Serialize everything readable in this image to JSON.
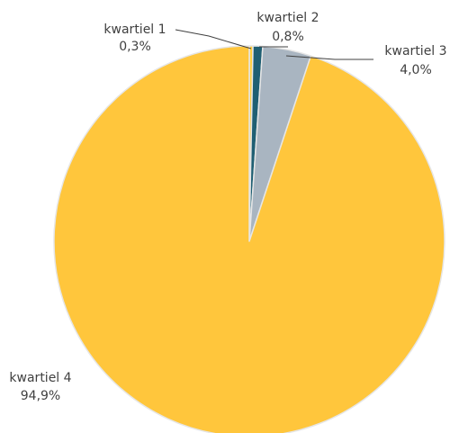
{
  "chart_data": {
    "type": "pie",
    "slices": [
      {
        "label": "kwartiel 1",
        "value": 0.3,
        "value_label": "0,3%",
        "color": "#FFCF3F"
      },
      {
        "label": "kwartiel 2",
        "value": 0.8,
        "value_label": "0,8%",
        "color": "#1F5F73"
      },
      {
        "label": "kwartiel 3",
        "value": 4.0,
        "value_label": "4,0%",
        "color": "#A9B5C1"
      },
      {
        "label": "kwartiel 4",
        "value": 94.9,
        "value_label": "94,9%",
        "color": "#FFC63C"
      }
    ],
    "slice_border_color": "#E6E6E6",
    "start_angle": "top",
    "direction": "clockwise",
    "legend": "none"
  }
}
